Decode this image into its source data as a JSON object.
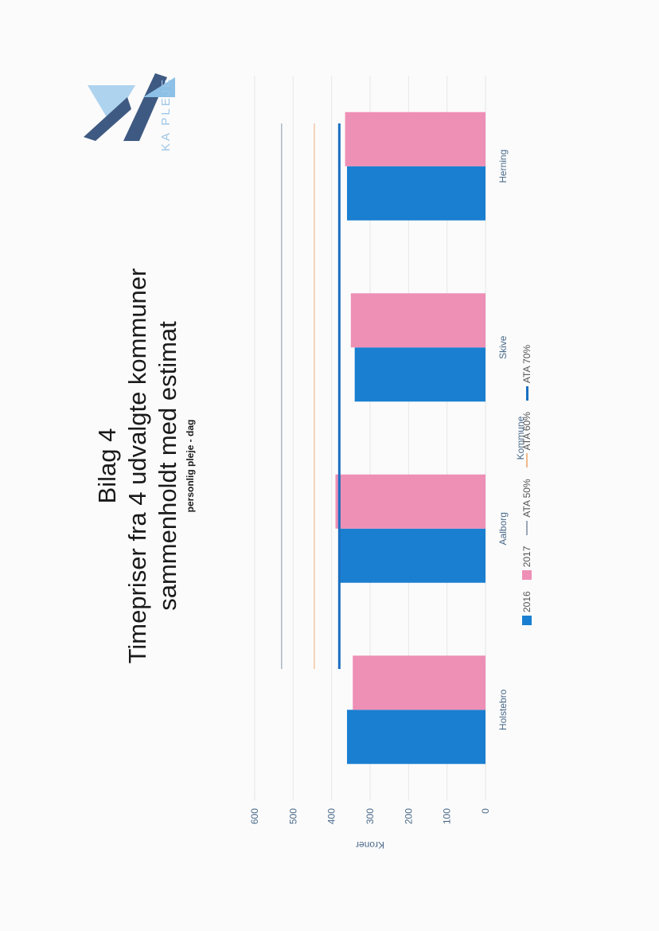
{
  "logo": {
    "text": "KA PLEJE"
  },
  "document": {
    "heading": "Bilag 4",
    "title_line1": "Timepriser fra 4 udvalgte kommuner",
    "title_line2": "sammenholdt med estimat",
    "subtitle": "personlig pleje - dag"
  },
  "chart_data": {
    "type": "bar",
    "categories": [
      "Holstebro",
      "Aalborg",
      "Skive",
      "Herning"
    ],
    "series": [
      {
        "name": "2016",
        "values": [
          360,
          380,
          340,
          360
        ]
      },
      {
        "name": "2017",
        "values": [
          345,
          390,
          350,
          365
        ]
      }
    ],
    "reference_lines": [
      {
        "name": "ATA 50%",
        "value": 530
      },
      {
        "name": "ATA 60%",
        "value": 445
      },
      {
        "name": "ATA 70%",
        "value": 380
      }
    ],
    "xlabel": "Kommune",
    "ylabel": "Kroner",
    "ylim": [
      0,
      600
    ],
    "yticks": [
      0,
      100,
      200,
      300,
      400,
      500,
      600
    ],
    "grid": true,
    "legend_position": "bottom",
    "colors": {
      "2016": "#1a7fd0",
      "2017": "#ee8fb6",
      "ATA 50%": "#9aa7b5",
      "ATA 60%": "#f1b98d",
      "ATA 70%": "#1b6fc0"
    }
  }
}
